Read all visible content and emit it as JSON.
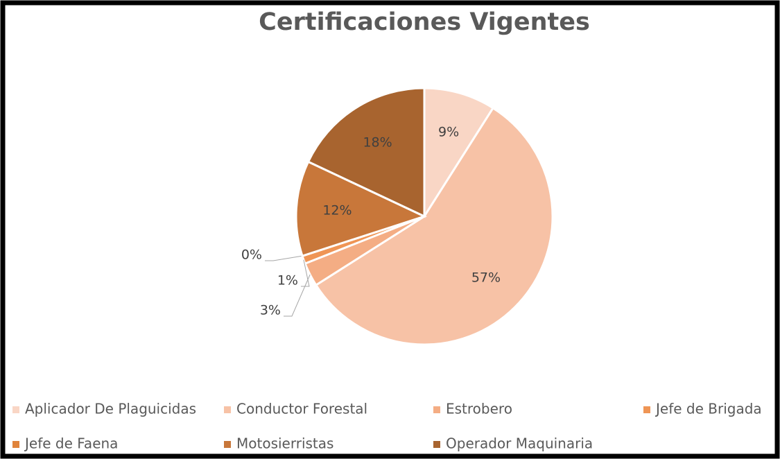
{
  "chart_data": {
    "type": "pie",
    "title": "Certificaciones Vigentes",
    "categories": [
      "Aplicador De Plaguicidas",
      "Conductor Forestal",
      "Estrobero",
      "Jefe de Brigada",
      "Jefe de Faena",
      "Motosierristas",
      "Operador Maquinaria"
    ],
    "values": [
      9,
      57,
      3,
      1,
      0,
      12,
      18
    ],
    "value_labels": [
      "9%",
      "57%",
      "3%",
      "1%",
      "0%",
      "12%",
      "18%"
    ],
    "colors": [
      "#f9d6c5",
      "#f7c2a6",
      "#f4ad84",
      "#ef9555",
      "#e0843c",
      "#c8773a",
      "#a8642f"
    ],
    "legend": "bottom"
  }
}
